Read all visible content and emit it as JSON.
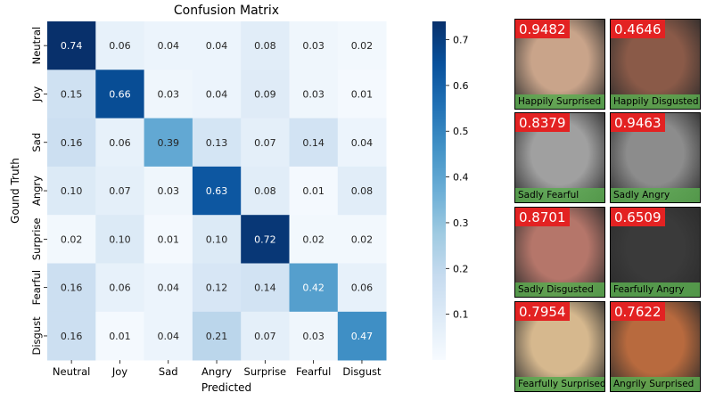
{
  "chart_data": {
    "type": "heatmap",
    "title": "Confusion Matrix",
    "xlabel": "Predicted",
    "ylabel": "Gound Truth",
    "x_categories": [
      "Neutral",
      "Joy",
      "Sad",
      "Angry",
      "Surprise",
      "Fearful",
      "Disgust"
    ],
    "y_categories": [
      "Neutral",
      "Joy",
      "Sad",
      "Angry",
      "Surprise",
      "Fearful",
      "Disgust"
    ],
    "values": [
      [
        0.74,
        0.06,
        0.04,
        0.04,
        0.08,
        0.03,
        0.02
      ],
      [
        0.15,
        0.66,
        0.03,
        0.04,
        0.09,
        0.03,
        0.01
      ],
      [
        0.16,
        0.06,
        0.39,
        0.13,
        0.07,
        0.14,
        0.04
      ],
      [
        0.1,
        0.07,
        0.03,
        0.63,
        0.08,
        0.01,
        0.08
      ],
      [
        0.02,
        0.1,
        0.01,
        0.1,
        0.72,
        0.02,
        0.02
      ],
      [
        0.16,
        0.06,
        0.04,
        0.12,
        0.14,
        0.42,
        0.06
      ],
      [
        0.16,
        0.01,
        0.04,
        0.21,
        0.07,
        0.03,
        0.47
      ]
    ],
    "value_labels": [
      [
        "0.74",
        "0.06",
        "0.04",
        "0.04",
        "0.08",
        "0.03",
        "0.02"
      ],
      [
        "0.15",
        "0.66",
        "0.03",
        "0.04",
        "0.09",
        "0.03",
        "0.01"
      ],
      [
        "0.16",
        "0.06",
        "0.39",
        "0.13",
        "0.07",
        "0.14",
        "0.04"
      ],
      [
        "0.10",
        "0.07",
        "0.03",
        "0.63",
        "0.08",
        "0.01",
        "0.08"
      ],
      [
        "0.02",
        "0.10",
        "0.01",
        "0.10",
        "0.72",
        "0.02",
        "0.02"
      ],
      [
        "0.16",
        "0.06",
        "0.04",
        "0.12",
        "0.14",
        "0.42",
        "0.06"
      ],
      [
        "0.16",
        "0.01",
        "0.04",
        "0.21",
        "0.07",
        "0.03",
        "0.47"
      ]
    ],
    "colormap": "Blues",
    "colorbar": {
      "range": [
        0.0,
        0.74
      ],
      "ticks": [
        0.1,
        0.2,
        0.3,
        0.4,
        0.5,
        0.6,
        0.7
      ],
      "tick_labels": [
        "0.1",
        "0.2",
        "0.3",
        "0.4",
        "0.5",
        "0.6",
        "0.7"
      ]
    }
  },
  "faces": [
    {
      "score": "0.9482",
      "caption": "Happily Surprised",
      "skin": "#c9a48a"
    },
    {
      "score": "0.4646",
      "caption": "Happily Disgusted",
      "skin": "#8a5a48"
    },
    {
      "score": "0.8379",
      "caption": "Sadly Fearful",
      "skin": "#a0a0a0"
    },
    {
      "score": "0.9463",
      "caption": "Sadly Angry",
      "skin": "#8c8c8c"
    },
    {
      "score": "0.8701",
      "caption": "Sadly Disgusted",
      "skin": "#b5766a"
    },
    {
      "score": "0.6509",
      "caption": "Fearfully Angry",
      "skin": "#3a3a3a"
    },
    {
      "score": "0.7954",
      "caption": "Fearfully Surprised",
      "skin": "#d6b88e"
    },
    {
      "score": "0.7622",
      "caption": "Angrily Surprised",
      "skin": "#b86a3e"
    }
  ],
  "colors": {
    "score_bg": "#e32222",
    "caption_bg": "#5aaa50"
  }
}
